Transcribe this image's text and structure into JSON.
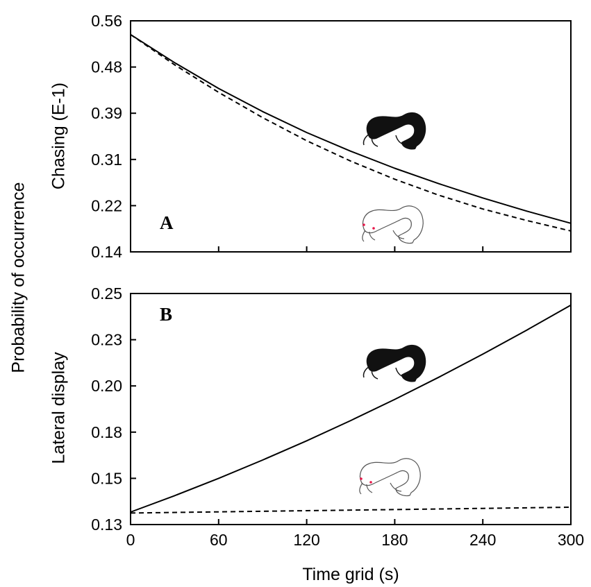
{
  "chart_data": [
    {
      "type": "line",
      "panel_label": "A",
      "ylabel": "Chasing (E-1)",
      "xlim": [
        0,
        300
      ],
      "ylim": [
        0.14,
        0.56
      ],
      "yticks": [
        "0.56",
        "0.48",
        "0.39",
        "0.31",
        "0.22",
        "0.14"
      ],
      "grid": false,
      "series": [
        {
          "style": "solid",
          "color": "#000000",
          "x": [
            0,
            30,
            60,
            90,
            120,
            150,
            180,
            210,
            240,
            270,
            300
          ],
          "y": [
            0.535,
            0.484,
            0.437,
            0.395,
            0.357,
            0.323,
            0.292,
            0.264,
            0.238,
            0.214,
            0.192
          ]
        },
        {
          "style": "dashed",
          "color": "#000000",
          "x": [
            0,
            30,
            60,
            90,
            120,
            150,
            180,
            210,
            240,
            270,
            300
          ],
          "y": [
            0.535,
            0.48,
            0.43,
            0.384,
            0.342,
            0.305,
            0.272,
            0.243,
            0.218,
            0.197,
            0.178
          ]
        }
      ]
    },
    {
      "type": "line",
      "panel_label": "B",
      "ylabel": "Lateral display",
      "xlabel": "Time grid (s)",
      "xlim": [
        0,
        300
      ],
      "ylim": [
        0.13,
        0.25
      ],
      "xticks": [
        "0",
        "60",
        "120",
        "180",
        "240",
        "300"
      ],
      "yticks": [
        "0.25",
        "0.23",
        "0.20",
        "0.18",
        "0.15",
        "0.13"
      ],
      "grid": false,
      "series": [
        {
          "style": "solid",
          "color": "#000000",
          "x": [
            0,
            30,
            60,
            90,
            120,
            150,
            180,
            210,
            240,
            270,
            300
          ],
          "y": [
            0.1365,
            0.145,
            0.154,
            0.1635,
            0.1735,
            0.184,
            0.195,
            0.2065,
            0.2185,
            0.231,
            0.244
          ]
        },
        {
          "style": "dashed",
          "color": "#000000",
          "x": [
            0,
            60,
            120,
            180,
            240,
            300
          ],
          "y": [
            0.136,
            0.1366,
            0.1372,
            0.1378,
            0.1384,
            0.139
          ]
        }
      ]
    }
  ],
  "shared_ylabel": "Probability of occurrence",
  "icons": {
    "dark_fish": "catfish-dark-icon",
    "light_fish": "catfish-albino-icon",
    "eye_color": "#e8174a"
  }
}
